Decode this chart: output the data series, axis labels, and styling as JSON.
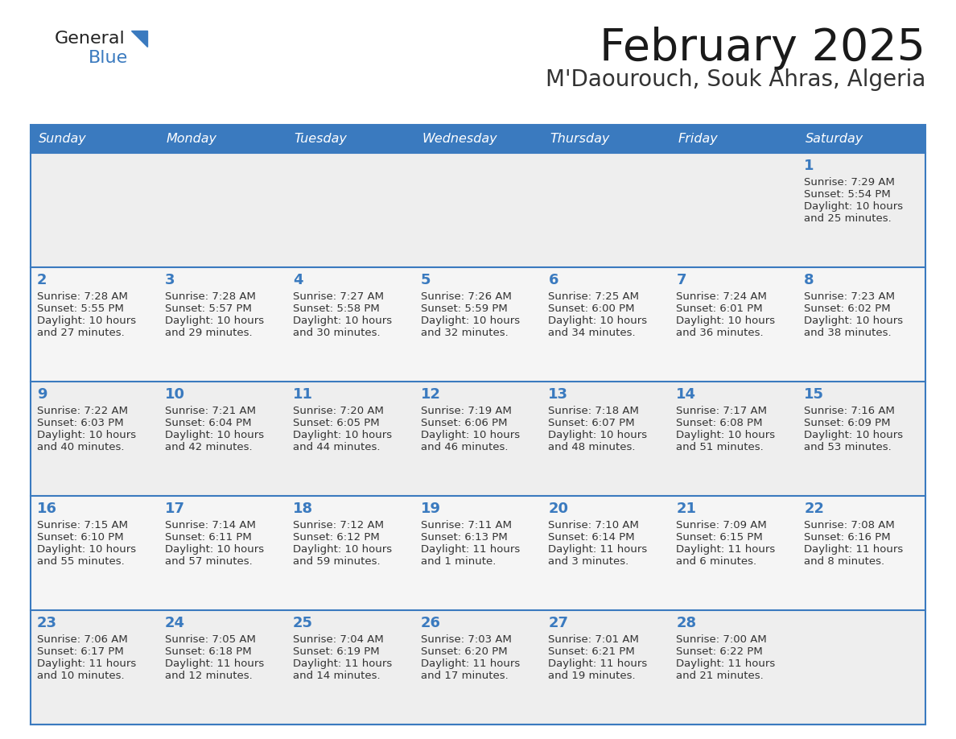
{
  "title": "February 2025",
  "subtitle": "M'Daourouch, Souk Ahras, Algeria",
  "header_bg_color": "#3a7abf",
  "header_text_color": "#ffffff",
  "row_bg_even": "#eeeeee",
  "row_bg_odd": "#f8f8f8",
  "day_number_color": "#3a7abf",
  "text_color": "#333333",
  "line_color": "#3a7abf",
  "days_of_week": [
    "Sunday",
    "Monday",
    "Tuesday",
    "Wednesday",
    "Thursday",
    "Friday",
    "Saturday"
  ],
  "calendar_data": [
    [
      {
        "day": null,
        "info": null
      },
      {
        "day": null,
        "info": null
      },
      {
        "day": null,
        "info": null
      },
      {
        "day": null,
        "info": null
      },
      {
        "day": null,
        "info": null
      },
      {
        "day": null,
        "info": null
      },
      {
        "day": 1,
        "info": "Sunrise: 7:29 AM\nSunset: 5:54 PM\nDaylight: 10 hours\nand 25 minutes."
      }
    ],
    [
      {
        "day": 2,
        "info": "Sunrise: 7:28 AM\nSunset: 5:55 PM\nDaylight: 10 hours\nand 27 minutes."
      },
      {
        "day": 3,
        "info": "Sunrise: 7:28 AM\nSunset: 5:57 PM\nDaylight: 10 hours\nand 29 minutes."
      },
      {
        "day": 4,
        "info": "Sunrise: 7:27 AM\nSunset: 5:58 PM\nDaylight: 10 hours\nand 30 minutes."
      },
      {
        "day": 5,
        "info": "Sunrise: 7:26 AM\nSunset: 5:59 PM\nDaylight: 10 hours\nand 32 minutes."
      },
      {
        "day": 6,
        "info": "Sunrise: 7:25 AM\nSunset: 6:00 PM\nDaylight: 10 hours\nand 34 minutes."
      },
      {
        "day": 7,
        "info": "Sunrise: 7:24 AM\nSunset: 6:01 PM\nDaylight: 10 hours\nand 36 minutes."
      },
      {
        "day": 8,
        "info": "Sunrise: 7:23 AM\nSunset: 6:02 PM\nDaylight: 10 hours\nand 38 minutes."
      }
    ],
    [
      {
        "day": 9,
        "info": "Sunrise: 7:22 AM\nSunset: 6:03 PM\nDaylight: 10 hours\nand 40 minutes."
      },
      {
        "day": 10,
        "info": "Sunrise: 7:21 AM\nSunset: 6:04 PM\nDaylight: 10 hours\nand 42 minutes."
      },
      {
        "day": 11,
        "info": "Sunrise: 7:20 AM\nSunset: 6:05 PM\nDaylight: 10 hours\nand 44 minutes."
      },
      {
        "day": 12,
        "info": "Sunrise: 7:19 AM\nSunset: 6:06 PM\nDaylight: 10 hours\nand 46 minutes."
      },
      {
        "day": 13,
        "info": "Sunrise: 7:18 AM\nSunset: 6:07 PM\nDaylight: 10 hours\nand 48 minutes."
      },
      {
        "day": 14,
        "info": "Sunrise: 7:17 AM\nSunset: 6:08 PM\nDaylight: 10 hours\nand 51 minutes."
      },
      {
        "day": 15,
        "info": "Sunrise: 7:16 AM\nSunset: 6:09 PM\nDaylight: 10 hours\nand 53 minutes."
      }
    ],
    [
      {
        "day": 16,
        "info": "Sunrise: 7:15 AM\nSunset: 6:10 PM\nDaylight: 10 hours\nand 55 minutes."
      },
      {
        "day": 17,
        "info": "Sunrise: 7:14 AM\nSunset: 6:11 PM\nDaylight: 10 hours\nand 57 minutes."
      },
      {
        "day": 18,
        "info": "Sunrise: 7:12 AM\nSunset: 6:12 PM\nDaylight: 10 hours\nand 59 minutes."
      },
      {
        "day": 19,
        "info": "Sunrise: 7:11 AM\nSunset: 6:13 PM\nDaylight: 11 hours\nand 1 minute."
      },
      {
        "day": 20,
        "info": "Sunrise: 7:10 AM\nSunset: 6:14 PM\nDaylight: 11 hours\nand 3 minutes."
      },
      {
        "day": 21,
        "info": "Sunrise: 7:09 AM\nSunset: 6:15 PM\nDaylight: 11 hours\nand 6 minutes."
      },
      {
        "day": 22,
        "info": "Sunrise: 7:08 AM\nSunset: 6:16 PM\nDaylight: 11 hours\nand 8 minutes."
      }
    ],
    [
      {
        "day": 23,
        "info": "Sunrise: 7:06 AM\nSunset: 6:17 PM\nDaylight: 11 hours\nand 10 minutes."
      },
      {
        "day": 24,
        "info": "Sunrise: 7:05 AM\nSunset: 6:18 PM\nDaylight: 11 hours\nand 12 minutes."
      },
      {
        "day": 25,
        "info": "Sunrise: 7:04 AM\nSunset: 6:19 PM\nDaylight: 11 hours\nand 14 minutes."
      },
      {
        "day": 26,
        "info": "Sunrise: 7:03 AM\nSunset: 6:20 PM\nDaylight: 11 hours\nand 17 minutes."
      },
      {
        "day": 27,
        "info": "Sunrise: 7:01 AM\nSunset: 6:21 PM\nDaylight: 11 hours\nand 19 minutes."
      },
      {
        "day": 28,
        "info": "Sunrise: 7:00 AM\nSunset: 6:22 PM\nDaylight: 11 hours\nand 21 minutes."
      },
      {
        "day": null,
        "info": null
      }
    ]
  ]
}
